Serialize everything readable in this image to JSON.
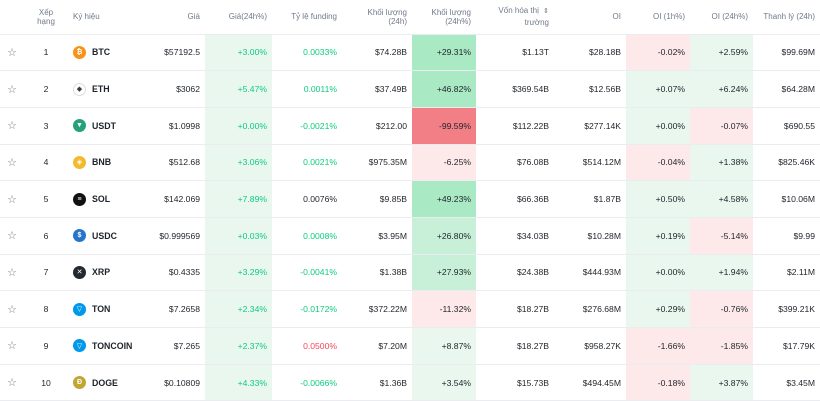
{
  "headers": {
    "rank": "Xếp hạng",
    "symbol": "Ký hiệu",
    "price": "Giá",
    "price_change": "Giá(24h%)",
    "funding": "Tỷ lệ funding",
    "volume": "Khối lượng (24h)",
    "volume_change": "Khối lượng (24h%)",
    "market_cap_line1": "Vốn hóa thị",
    "market_cap_line2": "trường",
    "oi": "OI",
    "oi_1h": "OI (1h%)",
    "oi_24h": "OI (24h%)",
    "liquidation": "Thanh lý (24h)"
  },
  "icons": {
    "star": "star-outline-icon",
    "sort": "sort-arrows-icon"
  },
  "colors": {
    "positive": "#0ecb81",
    "negative": "#f6465d",
    "light_green": "#e9f7ef",
    "light_red": "#fde9ea",
    "strong_red": "#f27f86"
  },
  "rows": [
    {
      "rank": "1",
      "symbol": "BTC",
      "icon_color": "#f7931a",
      "icon_glyph": "₿",
      "price": "$57192.5",
      "price_change": "+3.00%",
      "funding": "0.0033%",
      "funding_dir": "pos",
      "volume": "$74.28B",
      "volume_change": "+29.31%",
      "vol_bg": "bg-g3",
      "market_cap": "$1.13T",
      "oi": "$28.18B",
      "oi_1h": "-0.02%",
      "oi_1h_bg": "bg-r1",
      "oi_24h": "+2.59%",
      "oi_24h_bg": "bg-g1",
      "liquidation": "$99.69M"
    },
    {
      "rank": "2",
      "symbol": "ETH",
      "icon_color": "#ffffff",
      "icon_glyph": "◆",
      "price": "$3062",
      "price_change": "+5.47%",
      "funding": "0.0011%",
      "funding_dir": "pos",
      "volume": "$37.49B",
      "volume_change": "+46.82%",
      "vol_bg": "bg-g3",
      "market_cap": "$369.54B",
      "oi": "$12.56B",
      "oi_1h": "+0.07%",
      "oi_1h_bg": "bg-g1",
      "oi_24h": "+6.24%",
      "oi_24h_bg": "bg-g1",
      "liquidation": "$64.28M"
    },
    {
      "rank": "3",
      "symbol": "USDT",
      "icon_color": "#26a17b",
      "icon_glyph": "▼",
      "price": "$1.0998",
      "price_change": "+0.00%",
      "funding": "-0.0021%",
      "funding_dir": "pos",
      "volume": "$212.00",
      "volume_change": "-99.59%",
      "vol_bg": "bg-r3",
      "market_cap": "$112.22B",
      "oi": "$277.14K",
      "oi_1h": "+0.00%",
      "oi_1h_bg": "bg-g1",
      "oi_24h": "-0.07%",
      "oi_24h_bg": "bg-r1",
      "liquidation": "$690.55"
    },
    {
      "rank": "4",
      "symbol": "BNB",
      "icon_color": "#f3ba2f",
      "icon_glyph": "◈",
      "price": "$512.68",
      "price_change": "+3.06%",
      "funding": "0.0021%",
      "funding_dir": "pos",
      "volume": "$975.35M",
      "volume_change": "-6.25%",
      "vol_bg": "bg-r1",
      "market_cap": "$76.08B",
      "oi": "$514.12M",
      "oi_1h": "-0.04%",
      "oi_1h_bg": "bg-r1",
      "oi_24h": "+1.38%",
      "oi_24h_bg": "bg-g1",
      "liquidation": "$825.46K"
    },
    {
      "rank": "5",
      "symbol": "SOL",
      "icon_color": "#111111",
      "icon_glyph": "≡",
      "price": "$142.069",
      "price_change": "+7.89%",
      "funding": "0.0076%",
      "funding_dir": "neutral",
      "volume": "$9.85B",
      "volume_change": "+49.23%",
      "vol_bg": "bg-g3",
      "market_cap": "$66.36B",
      "oi": "$1.87B",
      "oi_1h": "+0.50%",
      "oi_1h_bg": "bg-g1",
      "oi_24h": "+4.58%",
      "oi_24h_bg": "bg-g1",
      "liquidation": "$10.06M"
    },
    {
      "rank": "6",
      "symbol": "USDC",
      "icon_color": "#2775ca",
      "icon_glyph": "$",
      "price": "$0.999569",
      "price_change": "+0.03%",
      "funding": "0.0008%",
      "funding_dir": "pos",
      "volume": "$3.95M",
      "volume_change": "+26.80%",
      "vol_bg": "bg-g2",
      "market_cap": "$34.03B",
      "oi": "$10.28M",
      "oi_1h": "+0.19%",
      "oi_1h_bg": "bg-g1",
      "oi_24h": "-5.14%",
      "oi_24h_bg": "bg-r1",
      "liquidation": "$9.99"
    },
    {
      "rank": "7",
      "symbol": "XRP",
      "icon_color": "#23292f",
      "icon_glyph": "✕",
      "price": "$0.4335",
      "price_change": "+3.29%",
      "funding": "-0.0041%",
      "funding_dir": "pos",
      "volume": "$1.38B",
      "volume_change": "+27.93%",
      "vol_bg": "bg-g2",
      "market_cap": "$24.38B",
      "oi": "$444.93M",
      "oi_1h": "+0.00%",
      "oi_1h_bg": "bg-g1",
      "oi_24h": "+1.94%",
      "oi_24h_bg": "bg-g1",
      "liquidation": "$2.11M"
    },
    {
      "rank": "8",
      "symbol": "TON",
      "icon_color": "#0098ea",
      "icon_glyph": "▽",
      "price": "$7.2658",
      "price_change": "+2.34%",
      "funding": "-0.0172%",
      "funding_dir": "pos",
      "volume": "$372.22M",
      "volume_change": "-11.32%",
      "vol_bg": "bg-r1",
      "market_cap": "$18.27B",
      "oi": "$276.68M",
      "oi_1h": "+0.29%",
      "oi_1h_bg": "bg-g1",
      "oi_24h": "-0.76%",
      "oi_24h_bg": "bg-r1",
      "liquidation": "$399.21K"
    },
    {
      "rank": "9",
      "symbol": "TONCOIN",
      "icon_color": "#0098ea",
      "icon_glyph": "▽",
      "price": "$7.265",
      "price_change": "+2.37%",
      "funding": "0.0500%",
      "funding_dir": "neg",
      "volume": "$7.20M",
      "volume_change": "+8.87%",
      "vol_bg": "bg-g1",
      "market_cap": "$18.27B",
      "oi": "$958.27K",
      "oi_1h": "-1.66%",
      "oi_1h_bg": "bg-r1",
      "oi_24h": "-1.85%",
      "oi_24h_bg": "bg-r1",
      "liquidation": "$17.79K"
    },
    {
      "rank": "10",
      "symbol": "DOGE",
      "icon_color": "#c2a633",
      "icon_glyph": "Ð",
      "price": "$0.10809",
      "price_change": "+4.33%",
      "funding": "-0.0066%",
      "funding_dir": "pos",
      "volume": "$1.36B",
      "volume_change": "+3.54%",
      "vol_bg": "bg-g1",
      "market_cap": "$15.73B",
      "oi": "$494.45M",
      "oi_1h": "-0.18%",
      "oi_1h_bg": "bg-r1",
      "oi_24h": "+3.87%",
      "oi_24h_bg": "bg-g1",
      "liquidation": "$3.45M"
    }
  ]
}
